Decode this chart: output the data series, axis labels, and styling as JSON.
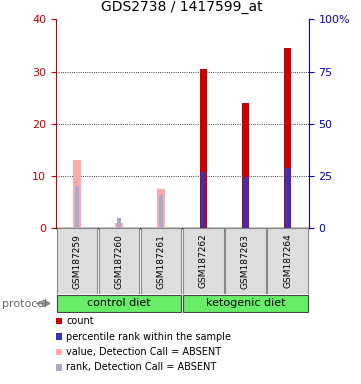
{
  "title": "GDS2738 / 1417599_at",
  "samples": [
    "GSM187259",
    "GSM187260",
    "GSM187261",
    "GSM187262",
    "GSM187263",
    "GSM187264"
  ],
  "count_values": [
    null,
    null,
    null,
    30.5,
    24.0,
    34.5
  ],
  "percentile_values": [
    null,
    null,
    null,
    27.0,
    24.5,
    29.0
  ],
  "value_absent": [
    13.0,
    1.0,
    7.5,
    null,
    null,
    null
  ],
  "rank_absent": [
    20.5,
    5.0,
    16.0,
    null,
    null,
    null
  ],
  "groups": [
    {
      "label": "control diet",
      "indices": [
        0,
        1,
        2
      ],
      "color": "#66ee66"
    },
    {
      "label": "ketogenic diet",
      "indices": [
        3,
        4,
        5
      ],
      "color": "#66ee66"
    }
  ],
  "left_ylim": [
    0,
    40
  ],
  "right_ylim": [
    0,
    100
  ],
  "left_yticks": [
    0,
    10,
    20,
    30,
    40
  ],
  "right_yticks": [
    0,
    25,
    50,
    75,
    100
  ],
  "right_yticklabels": [
    "0",
    "25",
    "50",
    "75",
    "100%"
  ],
  "count_color": "#cc0000",
  "percentile_color": "#3333bb",
  "value_absent_color": "#ffaaaa",
  "rank_absent_color": "#aaaacc",
  "left_tick_color": "#cc0000",
  "right_tick_color": "#0000cc",
  "legend_items": [
    {
      "color": "#cc0000",
      "label": "count"
    },
    {
      "color": "#3333bb",
      "label": "percentile rank within the sample"
    },
    {
      "color": "#ffaaaa",
      "label": "value, Detection Call = ABSENT"
    },
    {
      "color": "#aaaacc",
      "label": "rank, Detection Call = ABSENT"
    }
  ],
  "protocol_label": "protocol"
}
